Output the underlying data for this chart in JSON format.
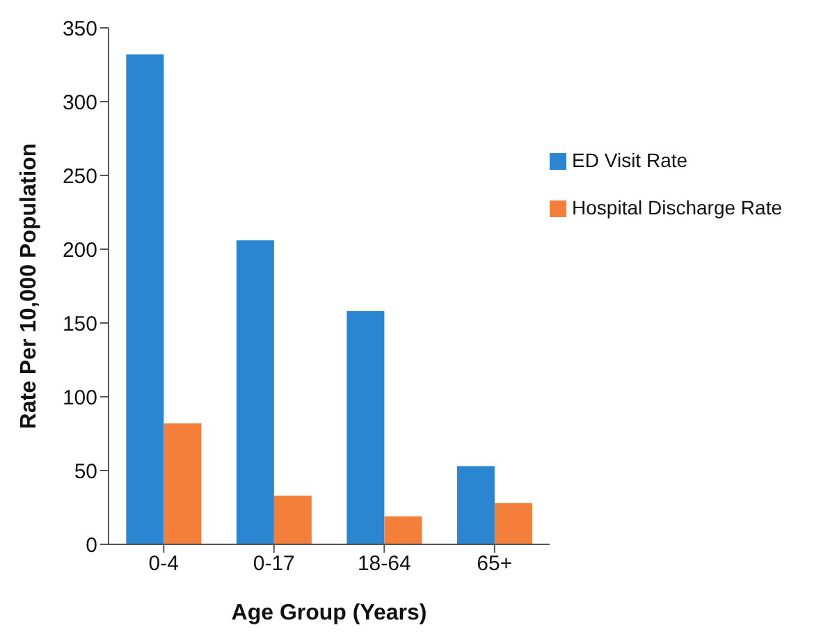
{
  "chart_data": {
    "type": "bar",
    "xlabel": "Age Group (Years)",
    "ylabel": "Rate Per 10,000 Population",
    "categories": [
      "0-4",
      "0-17",
      "18-64",
      "65+"
    ],
    "series": [
      {
        "name": "ED Visit Rate",
        "color": "#2a86d0",
        "values": [
          332,
          206,
          158,
          53
        ]
      },
      {
        "name": "Hospital Discharge Rate",
        "color": "#f47f3a",
        "values": [
          82,
          33,
          19,
          28
        ]
      }
    ],
    "ylim": [
      0,
      350
    ],
    "yticks": [
      0,
      50,
      100,
      150,
      200,
      250,
      300,
      350
    ],
    "grid": false,
    "legend": "top right"
  }
}
